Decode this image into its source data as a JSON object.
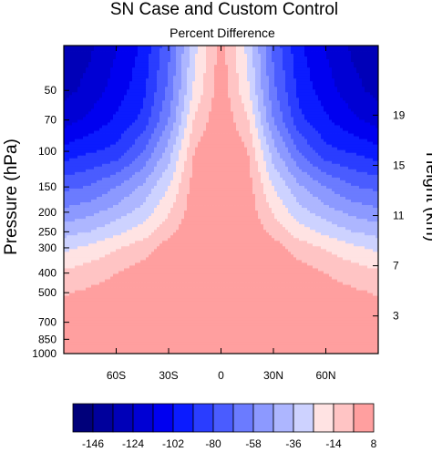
{
  "chart_data": {
    "type": "heatmap",
    "title": "SN Case and Custom Control",
    "subtitle": "Percent Difference",
    "ylabel": "Pressure (hPa)",
    "y2label": "Height (km)",
    "xlim": [
      -90,
      90
    ],
    "ylim": [
      1000,
      30
    ],
    "y_scale": "log",
    "x_ticks": [
      {
        "value": -60,
        "label": "60S"
      },
      {
        "value": -30,
        "label": "30S"
      },
      {
        "value": 0,
        "label": "0"
      },
      {
        "value": 30,
        "label": "30N"
      },
      {
        "value": 60,
        "label": "60N"
      }
    ],
    "y_ticks": [
      {
        "value": 50,
        "label": "50"
      },
      {
        "value": 70,
        "label": "70"
      },
      {
        "value": 100,
        "label": "100"
      },
      {
        "value": 150,
        "label": "150"
      },
      {
        "value": 200,
        "label": "200"
      },
      {
        "value": 250,
        "label": "250"
      },
      {
        "value": 300,
        "label": "300"
      },
      {
        "value": 400,
        "label": "400"
      },
      {
        "value": 500,
        "label": "500"
      },
      {
        "value": 700,
        "label": "700"
      },
      {
        "value": 850,
        "label": "850"
      },
      {
        "value": 1000,
        "label": "1000"
      }
    ],
    "y2_ticks": [
      {
        "value": 19,
        "label": "19"
      },
      {
        "value": 15,
        "label": "15"
      },
      {
        "value": 11,
        "label": "11"
      },
      {
        "value": 7,
        "label": "7"
      },
      {
        "value": 3,
        "label": "3"
      }
    ],
    "colorbar": {
      "levels": [
        -146,
        -135,
        -124,
        -113,
        -102,
        -91,
        -80,
        -69,
        -58,
        -47,
        -36,
        -25,
        -14,
        -3,
        8
      ],
      "labels": [
        "-146",
        "-124",
        "-102",
        "-80",
        "-58",
        "-36",
        "-14",
        "8"
      ],
      "colors": [
        "#00007a",
        "#00009c",
        "#0000b8",
        "#0000d4",
        "#0000f0",
        "#0b1bff",
        "#2a3dff",
        "#4a5cff",
        "#6b7bff",
        "#8c99ff",
        "#adb6ff",
        "#cdd2ff",
        "#ffe3e3",
        "#ffc4c4",
        "#ff9f9f"
      ]
    },
    "field": {
      "lat": [
        -90,
        -75,
        -60,
        -45,
        -30,
        -15,
        0,
        15,
        30,
        45,
        60,
        75,
        90
      ],
      "p": [
        1000,
        850,
        700,
        500,
        400,
        300,
        250,
        200,
        150,
        100,
        70,
        50,
        30
      ],
      "values": [
        [
          3,
          5,
          6,
          6,
          7,
          8,
          10,
          8,
          7,
          6,
          6,
          5,
          3
        ],
        [
          3,
          5,
          6,
          6,
          6,
          7,
          8,
          7,
          6,
          6,
          6,
          5,
          3
        ],
        [
          2,
          4,
          5,
          6,
          6,
          6,
          7,
          6,
          6,
          6,
          5,
          4,
          2
        ],
        [
          -4,
          -1,
          2,
          5,
          6,
          6,
          6,
          6,
          6,
          5,
          2,
          -1,
          -4
        ],
        [
          -12,
          -8,
          -3,
          2,
          6,
          6,
          6,
          6,
          6,
          2,
          -3,
          -8,
          -12
        ],
        [
          -28,
          -22,
          -15,
          -8,
          2,
          6,
          6,
          6,
          2,
          -8,
          -15,
          -22,
          -28
        ],
        [
          -40,
          -36,
          -28,
          -20,
          -6,
          5,
          6,
          5,
          -6,
          -20,
          -28,
          -36,
          -40
        ],
        [
          -55,
          -50,
          -42,
          -32,
          -15,
          4,
          6,
          4,
          -15,
          -32,
          -42,
          -50,
          -55
        ],
        [
          -72,
          -68,
          -58,
          -45,
          -25,
          3,
          7,
          3,
          -25,
          -45,
          -58,
          -68,
          -72
        ],
        [
          -98,
          -92,
          -88,
          -70,
          -42,
          -2,
          7,
          -2,
          -42,
          -70,
          -88,
          -92,
          -98
        ],
        [
          -118,
          -110,
          -100,
          -88,
          -58,
          -12,
          6,
          -12,
          -58,
          -88,
          -100,
          -110,
          -118
        ],
        [
          -128,
          -120,
          -108,
          -95,
          -66,
          -22,
          4,
          -22,
          -66,
          -95,
          -108,
          -120,
          -128
        ],
        [
          -134,
          -126,
          -114,
          -100,
          -72,
          -28,
          2,
          -28,
          -72,
          -100,
          -114,
          -126,
          -134
        ]
      ]
    }
  }
}
